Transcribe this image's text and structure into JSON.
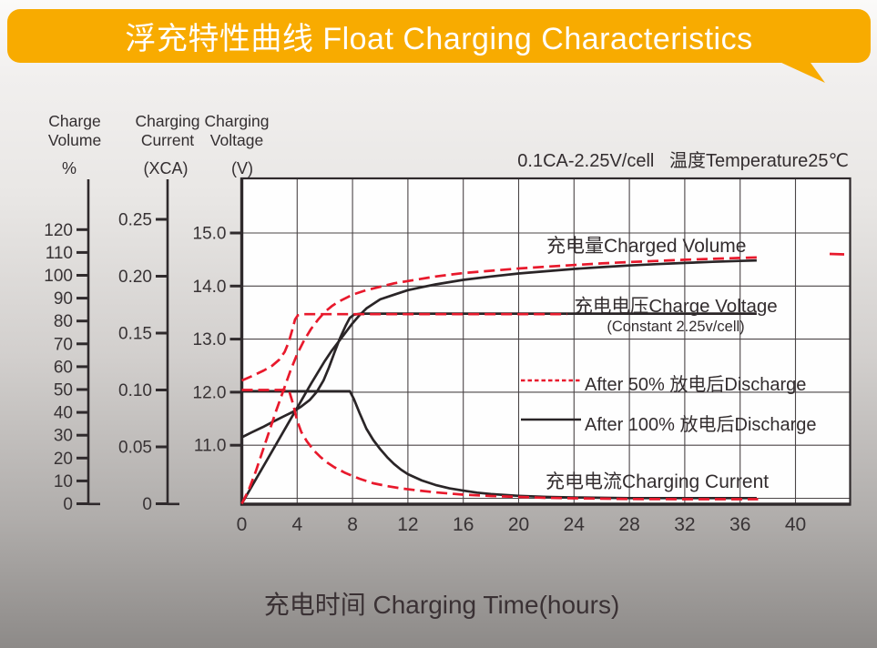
{
  "banner": {
    "title": "浮充特性曲线 Float Charging Characteristics",
    "bg_color": "#F8AB00",
    "text_color": "#FFFFFF"
  },
  "axis_headers": {
    "volume": {
      "line1": "Charge",
      "line2": "Volume",
      "unit": "%"
    },
    "current": {
      "line1": "Charging",
      "line2": "Current",
      "unit": "(XCA)"
    },
    "voltage": {
      "line1": "Charging",
      "line2": "Voltage",
      "unit": "(V)"
    }
  },
  "condition_note": "0.1CA-2.25V/cell   温度Temperature25℃",
  "x_axis_title": "充电时间 Charging Time(hours)",
  "curve_labels": {
    "charged_volume": "充电量Charged Volume",
    "charge_voltage": "充电电压Charge Voltage",
    "charge_voltage_sub": "(Constant 2.25v/cell)",
    "charging_current": "充电电流Charging Current"
  },
  "legend": [
    {
      "label": "After 50% 放电后Discharge",
      "line_style": "dashed",
      "color": "#E8192C"
    },
    {
      "label": "After 100% 放电后Discharge",
      "line_style": "solid",
      "color": "#2A2527"
    }
  ],
  "colors": {
    "red_series": "#E8192C",
    "black_series": "#2A2527",
    "grid": "#4B4547",
    "frame": "#2F2A2C"
  },
  "chart_data": {
    "type": "line",
    "title": "浮充特性曲线 Float Charging Characteristics",
    "condition": "0.1CA-2.25V/cell 温度Temperature25℃",
    "xlabel": "充电时间 Charging Time(hours)",
    "x_unit": "hours",
    "xlim": [
      0,
      44
    ],
    "x_ticks": [
      0,
      4,
      8,
      12,
      16,
      20,
      24,
      28,
      32,
      36,
      40
    ],
    "grid": true,
    "y_axes": [
      {
        "id": "volume",
        "label": "Charge Volume",
        "unit": "%",
        "ticks": [
          "0",
          "10",
          "20",
          "30",
          "40",
          "50",
          "60",
          "70",
          "80",
          "90",
          "100",
          "110",
          "120"
        ],
        "range": [
          0,
          142
        ]
      },
      {
        "id": "current",
        "label": "Charging Current",
        "unit": "XCA",
        "ticks": [
          "0",
          "0.05",
          "0.10",
          "0.15",
          "0.20",
          "0.25"
        ],
        "range": [
          0,
          0.286
        ]
      },
      {
        "id": "voltage",
        "label": "Charging Voltage",
        "unit": "V",
        "ticks": [
          "11.0",
          "12.0",
          "13.0",
          "14.0",
          "15.0"
        ],
        "range": [
          9.9,
          16.0
        ]
      }
    ],
    "series": [
      {
        "name": "充电量Charged Volume (After 50% 放电后Discharge)",
        "axis": "volume",
        "color": "#E8192C",
        "style": "dashed",
        "points": [
          [
            0,
            0
          ],
          [
            0.5,
            6
          ],
          [
            1,
            14
          ],
          [
            1.5,
            23
          ],
          [
            2,
            32
          ],
          [
            2.5,
            41
          ],
          [
            3,
            49.5
          ],
          [
            3.5,
            58
          ],
          [
            4,
            65.5
          ],
          [
            4.5,
            71.5
          ],
          [
            5,
            76.5
          ],
          [
            5.5,
            80.5
          ],
          [
            6,
            84
          ],
          [
            6.5,
            86.5
          ],
          [
            7,
            88.5
          ],
          [
            8,
            91.5
          ],
          [
            9,
            93.5
          ],
          [
            10,
            95
          ],
          [
            11,
            96.5
          ],
          [
            12,
            97.5
          ],
          [
            14,
            99.5
          ],
          [
            16,
            101
          ],
          [
            18,
            102
          ],
          [
            20,
            103
          ],
          [
            22,
            103.8
          ],
          [
            24,
            104.5
          ],
          [
            26,
            105.2
          ],
          [
            28,
            105.8
          ],
          [
            30,
            106.3
          ],
          [
            32,
            106.8
          ],
          [
            34,
            107.2
          ],
          [
            36,
            107.6
          ],
          [
            37.2,
            107.8
          ]
        ]
      },
      {
        "name": "充电量Charged Volume (After 100% 放电后Discharge)",
        "axis": "volume",
        "color": "#2A2527",
        "style": "solid",
        "points": [
          [
            0,
            0
          ],
          [
            1,
            10.5
          ],
          [
            2,
            21
          ],
          [
            3,
            31.5
          ],
          [
            4,
            42
          ],
          [
            5,
            52.5
          ],
          [
            6,
            62.5
          ],
          [
            6.5,
            67
          ],
          [
            7,
            71
          ],
          [
            7.5,
            75
          ],
          [
            8,
            79
          ],
          [
            8.5,
            82.5
          ],
          [
            9,
            85.5
          ],
          [
            9.5,
            87.5
          ],
          [
            10,
            89.5
          ],
          [
            11,
            91.5
          ],
          [
            12,
            93.5
          ],
          [
            13,
            94.8
          ],
          [
            14,
            96
          ],
          [
            16,
            98
          ],
          [
            18,
            99.5
          ],
          [
            20,
            100.8
          ],
          [
            22,
            101.8
          ],
          [
            24,
            102.8
          ],
          [
            26,
            103.6
          ],
          [
            28,
            104.3
          ],
          [
            30,
            104.9
          ],
          [
            32,
            105.4
          ],
          [
            34,
            105.9
          ],
          [
            36,
            106.3
          ],
          [
            37.2,
            106.5
          ]
        ]
      },
      {
        "name": "充电电压Charge Voltage (After 50% 放电后Discharge)",
        "axis": "voltage",
        "color": "#E8192C",
        "style": "dashed",
        "points": [
          [
            0,
            12.22
          ],
          [
            0.8,
            12.31
          ],
          [
            1.6,
            12.41
          ],
          [
            2.2,
            12.5
          ],
          [
            2.7,
            12.61
          ],
          [
            3.1,
            12.76
          ],
          [
            3.4,
            12.95
          ],
          [
            3.65,
            13.18
          ],
          [
            3.85,
            13.37
          ],
          [
            4.05,
            13.45
          ],
          [
            4.5,
            13.47
          ],
          [
            10,
            13.47
          ],
          [
            16,
            13.47
          ],
          [
            23.5,
            13.47
          ]
        ]
      },
      {
        "name": "充电电压Charge Voltage (After 100% 放电后Discharge)",
        "axis": "voltage",
        "color": "#2A2527",
        "style": "solid",
        "points": [
          [
            0,
            11.15
          ],
          [
            0.7,
            11.24
          ],
          [
            1.5,
            11.34
          ],
          [
            2.3,
            11.45
          ],
          [
            3,
            11.54
          ],
          [
            3.7,
            11.63
          ],
          [
            4.3,
            11.73
          ],
          [
            4.9,
            11.85
          ],
          [
            5.4,
            12.0
          ],
          [
            5.9,
            12.22
          ],
          [
            6.3,
            12.47
          ],
          [
            6.7,
            12.75
          ],
          [
            7.1,
            13.02
          ],
          [
            7.5,
            13.25
          ],
          [
            7.8,
            13.4
          ],
          [
            8.1,
            13.46
          ],
          [
            8.6,
            13.48
          ],
          [
            20,
            13.48
          ],
          [
            37.2,
            13.48
          ]
        ]
      },
      {
        "name": "充电电流Charging Current (After 50% 放电后Discharge)",
        "axis": "current",
        "color": "#E8192C",
        "style": "dashed",
        "points": [
          [
            0,
            0.1
          ],
          [
            3.4,
            0.1
          ],
          [
            3.7,
            0.088
          ],
          [
            4,
            0.073
          ],
          [
            4.3,
            0.063
          ],
          [
            4.7,
            0.055
          ],
          [
            5.2,
            0.047
          ],
          [
            5.7,
            0.041
          ],
          [
            6.2,
            0.036
          ],
          [
            6.7,
            0.032
          ],
          [
            7.5,
            0.027
          ],
          [
            8.5,
            0.022
          ],
          [
            9.5,
            0.018
          ],
          [
            10.5,
            0.0155
          ],
          [
            11.5,
            0.0135
          ],
          [
            12.5,
            0.012
          ],
          [
            14,
            0.01
          ],
          [
            16,
            0.008
          ],
          [
            18,
            0.0068
          ],
          [
            20,
            0.006
          ],
          [
            22,
            0.0052
          ],
          [
            24,
            0.0048
          ],
          [
            28,
            0.0042
          ],
          [
            32,
            0.004
          ],
          [
            36,
            0.004
          ],
          [
            37.3,
            0.004
          ]
        ]
      },
      {
        "name": "充电电流Charging Current (After 100% 放电后Discharge)",
        "axis": "current",
        "color": "#2A2527",
        "style": "solid",
        "points": [
          [
            0,
            0.099
          ],
          [
            7.8,
            0.099
          ],
          [
            8.1,
            0.092
          ],
          [
            8.5,
            0.08
          ],
          [
            9,
            0.066
          ],
          [
            9.5,
            0.056
          ],
          [
            10,
            0.048
          ],
          [
            10.5,
            0.041
          ],
          [
            11,
            0.035
          ],
          [
            11.5,
            0.03
          ],
          [
            12,
            0.026
          ],
          [
            13,
            0.0205
          ],
          [
            14,
            0.0165
          ],
          [
            15,
            0.0135
          ],
          [
            16,
            0.0115
          ],
          [
            17,
            0.0098
          ],
          [
            18,
            0.0086
          ],
          [
            19,
            0.0077
          ],
          [
            20,
            0.007
          ],
          [
            22,
            0.006
          ],
          [
            24,
            0.0055
          ],
          [
            28,
            0.005
          ],
          [
            32,
            0.005
          ],
          [
            36,
            0.005
          ],
          [
            37.2,
            0.005
          ]
        ]
      }
    ]
  }
}
